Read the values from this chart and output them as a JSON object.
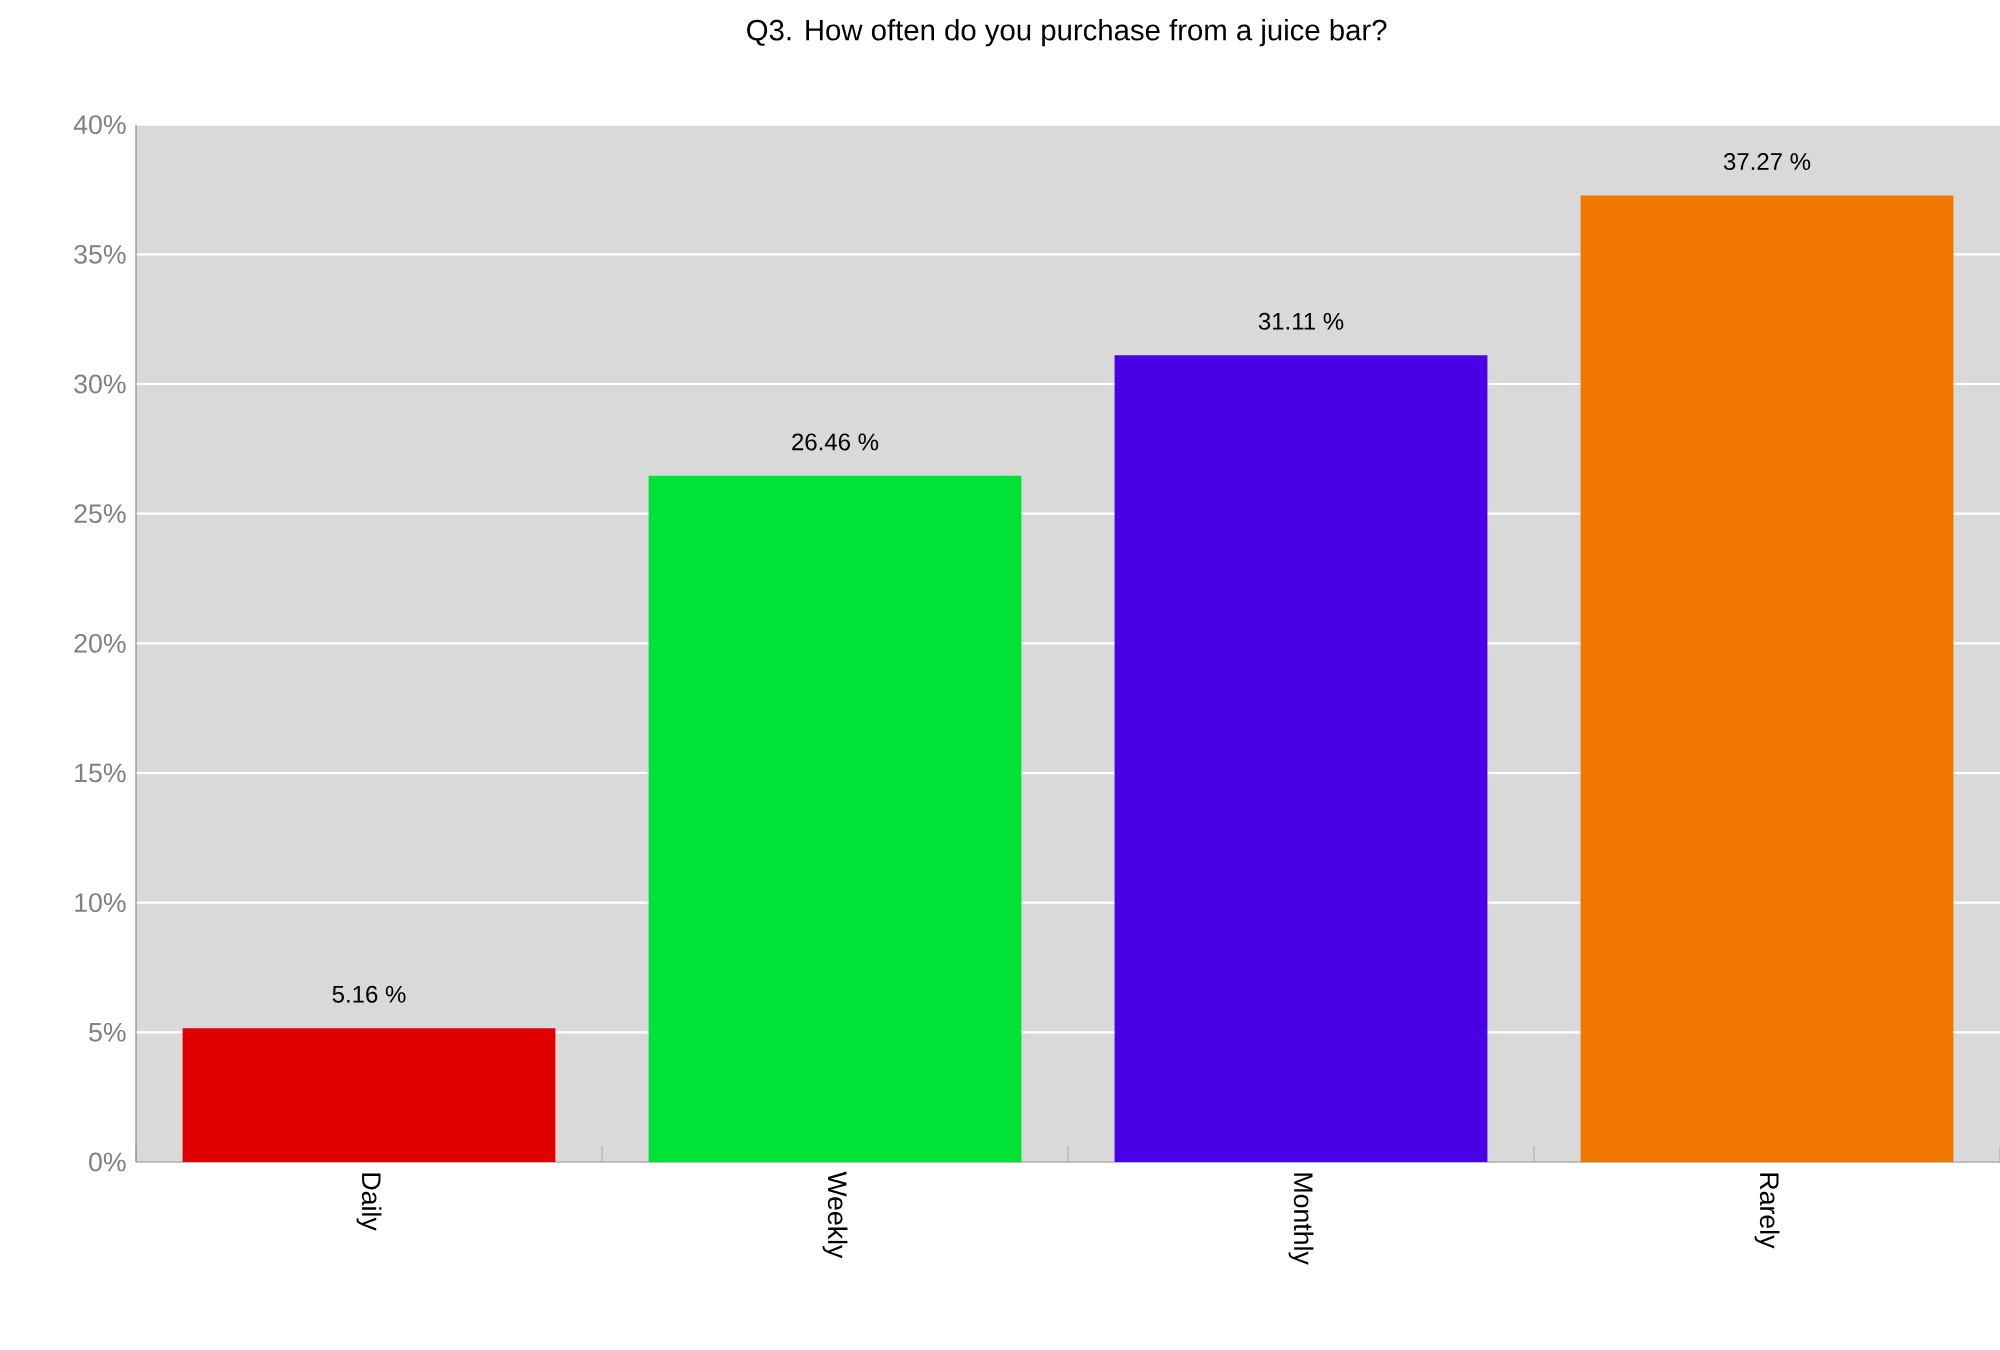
{
  "chart_data": {
    "type": "bar",
    "title": "Q3. How often do you purchase from a juice bar?",
    "categories": [
      "Daily",
      "Weekly",
      "Monthly",
      "Rarely"
    ],
    "values": [
      5.16,
      26.46,
      31.11,
      37.27
    ],
    "colors": [
      "#e00000",
      "#00e236",
      "#4a00e6",
      "#f07800"
    ],
    "value_labels": [
      "5.16 %",
      "26.46 %",
      "31.11 %",
      "37.27 %"
    ],
    "ylim": [
      0,
      40
    ],
    "yticks": [
      {
        "value": 0,
        "label": "0%"
      },
      {
        "value": 5,
        "label": "5%"
      },
      {
        "value": 10,
        "label": "10%"
      },
      {
        "value": 15,
        "label": "15%"
      },
      {
        "value": 20,
        "label": "20%"
      },
      {
        "value": 25,
        "label": "25%"
      },
      {
        "value": 30,
        "label": "30%"
      },
      {
        "value": 35,
        "label": "35%"
      },
      {
        "value": 40,
        "label": "40%"
      }
    ],
    "grid": "y"
  }
}
